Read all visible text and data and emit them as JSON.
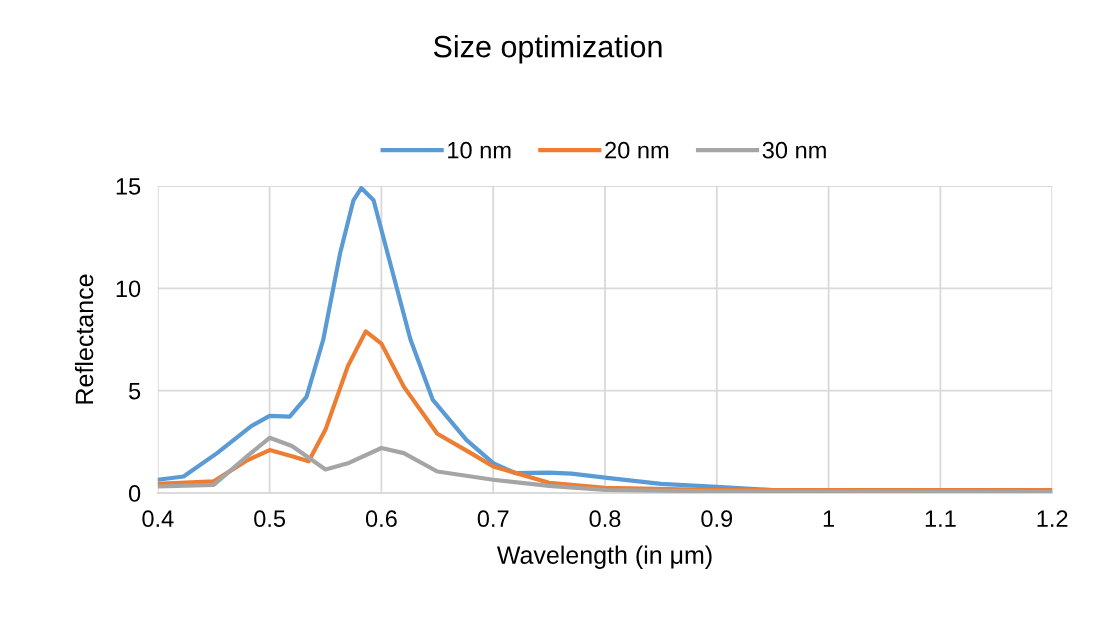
{
  "chart_data": {
    "type": "line",
    "title": "Size optimization",
    "xlabel": "Wavelength (in μm)",
    "ylabel": "Reflectance",
    "xlim": [
      0.4,
      1.2
    ],
    "xticks": [
      0.4,
      0.5,
      0.6,
      0.7,
      0.8,
      0.9,
      {
        "value": 1,
        "label": "1"
      },
      1.1,
      1.2
    ],
    "ylim": [
      0,
      15
    ],
    "yticks": [
      0,
      5,
      10,
      15
    ],
    "grid": true,
    "legend": "top",
    "marker": "none",
    "line_style": "solid",
    "series": [
      {
        "name": "10 nm",
        "color": "#5b9bd5",
        "x": [
          0.4,
          0.423,
          0.453,
          0.483,
          0.5,
          0.518,
          0.533,
          0.548,
          0.563,
          0.575,
          0.582,
          0.593,
          0.608,
          0.626,
          0.646,
          0.676,
          0.7,
          0.72,
          0.75,
          0.77,
          0.8,
          0.85,
          0.9,
          0.95,
          1.0,
          1.2
        ],
        "values": [
          0.65,
          0.81,
          1.95,
          3.25,
          3.77,
          3.73,
          4.7,
          7.5,
          11.7,
          14.3,
          14.9,
          14.3,
          11.2,
          7.5,
          4.55,
          2.6,
          1.46,
          0.97,
          1.0,
          0.95,
          0.75,
          0.45,
          0.3,
          0.15,
          0.12,
          0.12
        ]
      },
      {
        "name": "20 nm",
        "color": "#ed7d31",
        "x": [
          0.4,
          0.45,
          0.48,
          0.5,
          0.52,
          0.535,
          0.55,
          0.57,
          0.586,
          0.6,
          0.62,
          0.65,
          0.68,
          0.7,
          0.75,
          0.8,
          0.9,
          1.2
        ],
        "values": [
          0.45,
          0.57,
          1.6,
          2.1,
          1.8,
          1.55,
          3.1,
          6.2,
          7.9,
          7.3,
          5.2,
          2.9,
          1.95,
          1.3,
          0.5,
          0.25,
          0.15,
          0.15
        ]
      },
      {
        "name": "30 nm",
        "color": "#a5a5a5",
        "x": [
          0.4,
          0.45,
          0.48,
          0.5,
          0.52,
          0.55,
          0.57,
          0.6,
          0.62,
          0.65,
          0.7,
          0.75,
          0.8,
          0.9,
          1.2
        ],
        "values": [
          0.32,
          0.4,
          1.8,
          2.7,
          2.3,
          1.15,
          1.45,
          2.2,
          1.95,
          1.05,
          0.65,
          0.35,
          0.15,
          0.08,
          0.05
        ]
      }
    ]
  }
}
